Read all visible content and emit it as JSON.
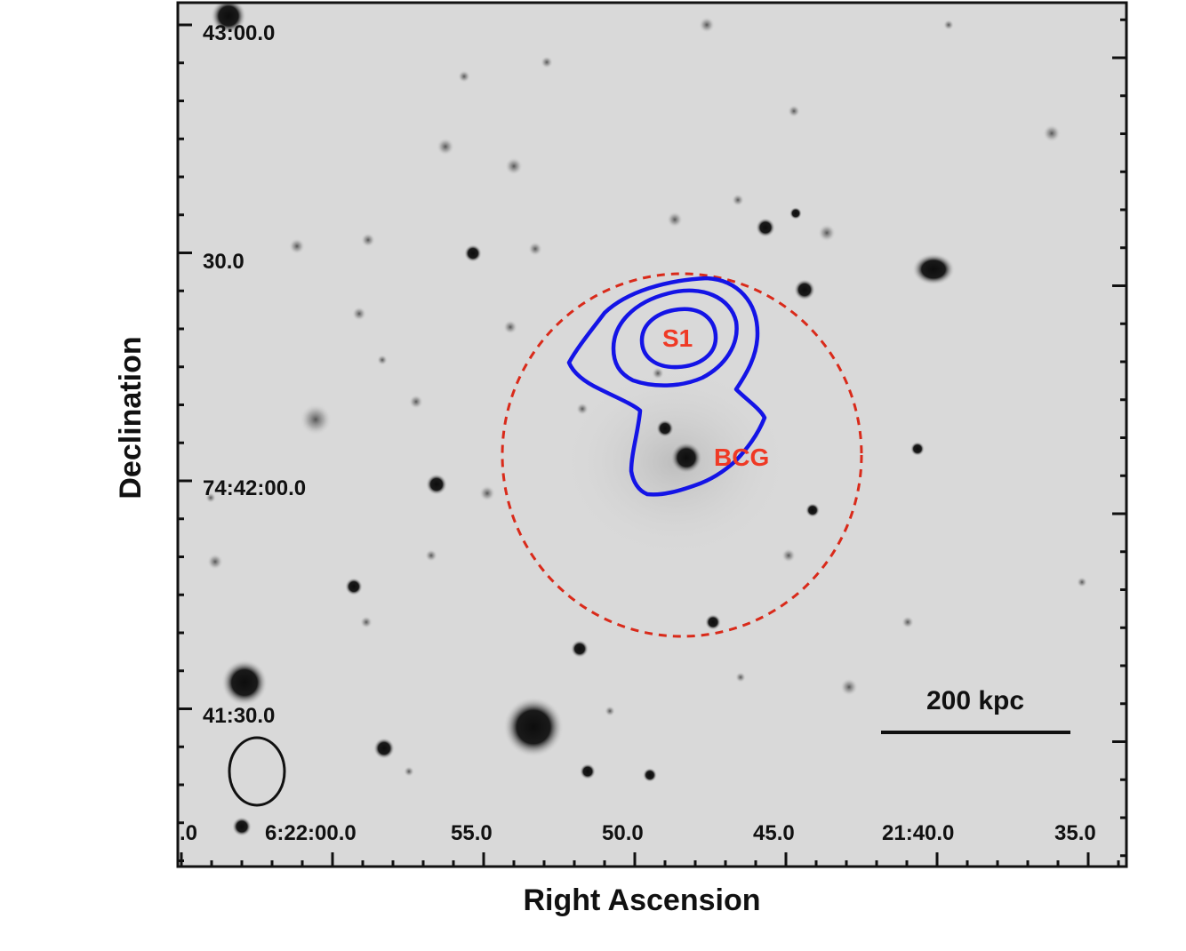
{
  "figure": {
    "xlabel": "Right Ascension",
    "ylabel": "Declination",
    "x_ticks": [
      ".0",
      "6:22:00.0",
      "55.0",
      "50.0",
      "45.0",
      "21:40.0",
      "35.0"
    ],
    "y_ticks": [
      "43:00.0",
      "30.0",
      "74:42:00.0",
      "41:30.0"
    ],
    "annotations": {
      "source": "S1",
      "galaxy": "BCG",
      "scale_bar": "200 kpc"
    },
    "colors": {
      "background": "#d9d9d9",
      "contour": "#1414e6",
      "circle": "#d92a1a",
      "annotation": "#ef3a25"
    },
    "icons": {
      "beam": "beam-ellipse-icon"
    }
  }
}
